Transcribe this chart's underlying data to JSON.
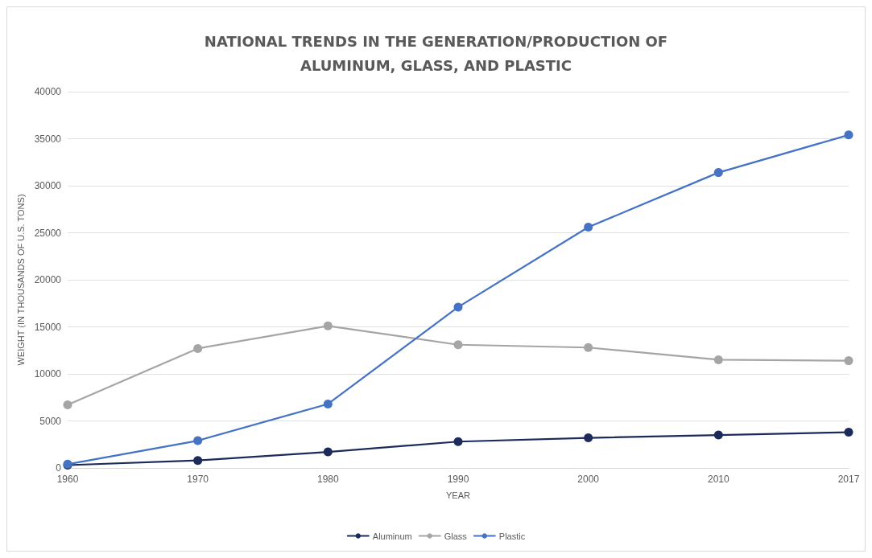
{
  "chart_data": {
    "type": "line",
    "title": "NATIONAL TRENDS IN THE GENERATION/PRODUCTION OF\nALUMINUM, GLASS, AND PLASTIC",
    "xlabel": "YEAR",
    "ylabel": "WEIGHT (IN THOUSANDS OF U.S. TONS)",
    "categories": [
      "1960",
      "1970",
      "1980",
      "1990",
      "2000",
      "2010",
      "2017"
    ],
    "series": [
      {
        "name": "Aluminum",
        "color": "#1c2b5a",
        "values": [
          300,
          800,
          1700,
          2800,
          3200,
          3500,
          3800
        ]
      },
      {
        "name": "Glass",
        "color": "#a5a5a5",
        "values": [
          6700,
          12700,
          15100,
          13100,
          12800,
          11500,
          11400
        ]
      },
      {
        "name": "Plastic",
        "color": "#4472c4",
        "values": [
          400,
          2900,
          6800,
          17100,
          25600,
          31400,
          35400
        ]
      }
    ],
    "ylim": [
      0,
      40000
    ],
    "yticks": [
      0,
      5000,
      10000,
      15000,
      20000,
      25000,
      30000,
      35000,
      40000
    ],
    "grid": "y",
    "legend": "bottom",
    "marker": "circle",
    "line_style": "solid"
  }
}
